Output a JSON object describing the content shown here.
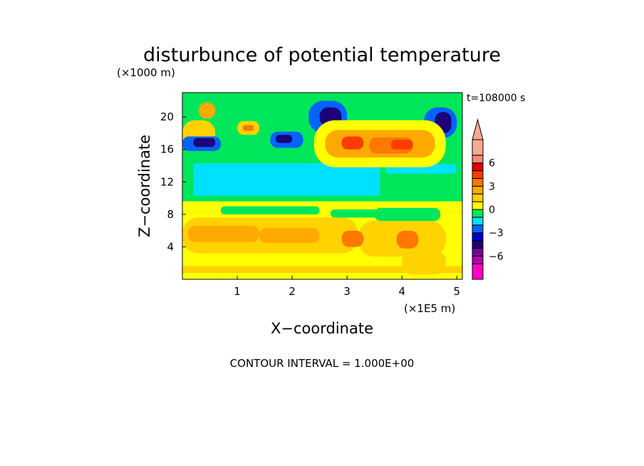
{
  "chart_data": {
    "type": "heatmap",
    "title": "disturbunce of potential temperature",
    "xlabel": "X−coordinate",
    "ylabel": "Z−coordinate",
    "x_unit_label": "(×1E5 m)",
    "y_unit_label": "(×1000 m)",
    "time_label": "t=108000 s",
    "footer": "CONTOUR INTERVAL = 1.000E+00",
    "xlim": [
      0,
      5.1
    ],
    "ylim": [
      0,
      23
    ],
    "x_ticks": [
      1,
      2,
      3,
      4,
      5
    ],
    "y_ticks": [
      4,
      8,
      12,
      16,
      20
    ],
    "grid": false,
    "colorbar": {
      "placement": "right",
      "tick_labels": [
        "6",
        "3",
        "0",
        "−3",
        "−6"
      ],
      "tick_values": [
        6,
        3,
        0,
        -3,
        -6
      ],
      "levels": [
        {
          "min": -9,
          "max": -7,
          "color": "#ff00c8"
        },
        {
          "min": -7,
          "max": -6,
          "color": "#b400b4"
        },
        {
          "min": -6,
          "max": -5,
          "color": "#780096"
        },
        {
          "min": -5,
          "max": -4,
          "color": "#1e0078"
        },
        {
          "min": -4,
          "max": -3,
          "color": "#0000c8"
        },
        {
          "min": -3,
          "max": -2,
          "color": "#0064ff"
        },
        {
          "min": -2,
          "max": -1,
          "color": "#00e1ff"
        },
        {
          "min": -1,
          "max": 0,
          "color": "#00e65a"
        },
        {
          "min": 0,
          "max": 1,
          "color": "#ffff00"
        },
        {
          "min": 1,
          "max": 2,
          "color": "#ffd200"
        },
        {
          "min": 2,
          "max": 3,
          "color": "#ffaa00"
        },
        {
          "min": 3,
          "max": 4,
          "color": "#ff7800"
        },
        {
          "min": 4,
          "max": 5,
          "color": "#ff3c00"
        },
        {
          "min": 5,
          "max": 6,
          "color": "#e10000"
        },
        {
          "min": 6,
          "max": 7,
          "color": "#f08c78"
        },
        {
          "min": 7,
          "max": 9,
          "color": "#f5aa96"
        }
      ]
    },
    "background_value": -0.5,
    "field": [
      {
        "x": [
          0,
          5.1
        ],
        "y": [
          0,
          0.8
        ],
        "value": 0.5
      },
      {
        "x": [
          0,
          5.1
        ],
        "y": [
          0.8,
          1.6
        ],
        "value": 1.5
      },
      {
        "x": [
          0,
          5.1
        ],
        "y": [
          1.6,
          8.3
        ],
        "value": 0.5
      },
      {
        "x": [
          0,
          5.1
        ],
        "y": [
          8.3,
          9.6
        ],
        "value": 0.5
      },
      {
        "x": [
          0.7,
          2.5
        ],
        "y": [
          8.0,
          9.0
        ],
        "value": -0.5
      },
      {
        "x": [
          2.7,
          3.6
        ],
        "y": [
          7.6,
          8.6
        ],
        "value": -0.5
      },
      {
        "x": [
          3.5,
          4.7
        ],
        "y": [
          7.2,
          8.8
        ],
        "value": -0.5
      },
      {
        "x": [
          0,
          3.2
        ],
        "y": [
          3.2,
          7.6
        ],
        "value": 1.5
      },
      {
        "x": [
          3.2,
          4.8
        ],
        "y": [
          2.8,
          7.2
        ],
        "value": 1.5
      },
      {
        "x": [
          0.1,
          1.4
        ],
        "y": [
          4.6,
          6.6
        ],
        "value": 2.5
      },
      {
        "x": [
          1.4,
          2.5
        ],
        "y": [
          4.5,
          6.3
        ],
        "value": 2.5
      },
      {
        "x": [
          2.9,
          3.3
        ],
        "y": [
          4.0,
          6.0
        ],
        "value": 3.5
      },
      {
        "x": [
          3.9,
          4.3
        ],
        "y": [
          3.8,
          6.0
        ],
        "value": 3.5
      },
      {
        "x": [
          4.0,
          4.8
        ],
        "y": [
          0.6,
          3.6
        ],
        "value": 1.5
      },
      {
        "x": [
          0.2,
          3.6
        ],
        "y": [
          10.3,
          14.3
        ],
        "value": -1.5
      },
      {
        "x": [
          3.7,
          5.0
        ],
        "y": [
          13.0,
          14.2
        ],
        "value": -1.5
      },
      {
        "x": [
          0,
          0.6
        ],
        "y": [
          16.2,
          19.6
        ],
        "value": 1.5
      },
      {
        "x": [
          1.0,
          1.4
        ],
        "y": [
          17.8,
          19.5
        ],
        "value": 1.5
      },
      {
        "x": [
          1.1,
          1.3
        ],
        "y": [
          18.3,
          19.0
        ],
        "value": 3.5
      },
      {
        "x": [
          0.3,
          0.6
        ],
        "y": [
          19.8,
          21.8
        ],
        "value": 2.5
      },
      {
        "x": [
          0,
          0.7
        ],
        "y": [
          15.8,
          17.6
        ],
        "value": -2.5
      },
      {
        "x": [
          0.2,
          0.6
        ],
        "y": [
          16.3,
          17.4
        ],
        "value": -4.5
      },
      {
        "x": [
          1.6,
          2.2
        ],
        "y": [
          16.2,
          18.2
        ],
        "value": -2.5
      },
      {
        "x": [
          1.7,
          2.0
        ],
        "y": [
          16.8,
          17.8
        ],
        "value": -4.5
      },
      {
        "x": [
          2.3,
          3.0
        ],
        "y": [
          18.0,
          22.0
        ],
        "value": -2.5
      },
      {
        "x": [
          2.5,
          2.9
        ],
        "y": [
          18.8,
          21.2
        ],
        "value": -4.5
      },
      {
        "x": [
          4.4,
          5.0
        ],
        "y": [
          17.4,
          21.2
        ],
        "value": -2.5
      },
      {
        "x": [
          4.6,
          4.9
        ],
        "y": [
          18.0,
          20.6
        ],
        "value": -4.5
      },
      {
        "x": [
          2.4,
          4.8
        ],
        "y": [
          13.8,
          19.6
        ],
        "value": 0.5
      },
      {
        "x": [
          2.6,
          4.6
        ],
        "y": [
          15.0,
          18.4
        ],
        "value": 2.5
      },
      {
        "x": [
          3.4,
          4.2
        ],
        "y": [
          15.5,
          17.5
        ],
        "value": 3.5
      },
      {
        "x": [
          2.9,
          3.3
        ],
        "y": [
          16.0,
          17.6
        ],
        "value": 4.5
      },
      {
        "x": [
          3.8,
          4.2
        ],
        "y": [
          16.0,
          17.2
        ],
        "value": 4.5
      }
    ]
  }
}
